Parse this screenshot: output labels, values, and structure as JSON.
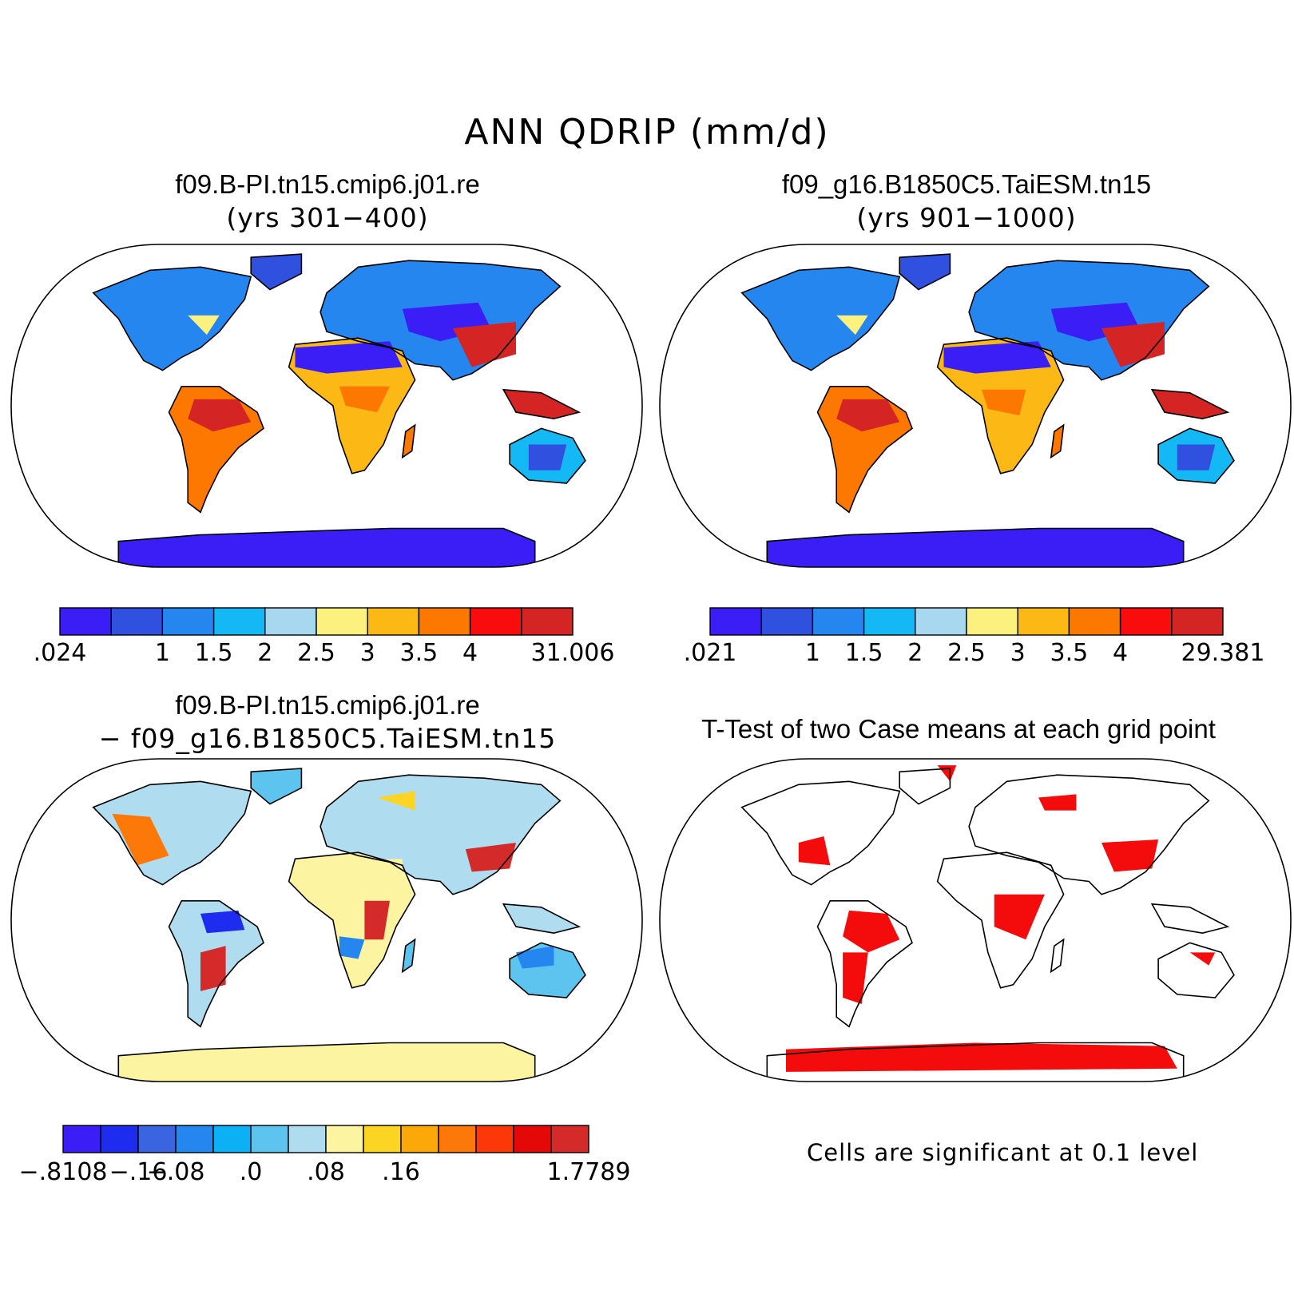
{
  "figure": {
    "title": "ANN QDRIP (mm/d)"
  },
  "panels": {
    "p1": {
      "title": "f09.B-PI.tn15.cmip6.j01.re",
      "subtitle": "(yrs 301−400)"
    },
    "p2": {
      "title": "f09_g16.B1850C5.TaiESM.tn15",
      "subtitle": "(yrs 901−1000)"
    },
    "p3": {
      "title": "f09.B-PI.tn15.cmip6.j01.re",
      "subtitle": "− f09_g16.B1850C5.TaiESM.tn15"
    },
    "p4": {
      "title": "T-Test of two Case means at each grid point",
      "note": "Cells are significant at 0.1 level"
    }
  },
  "colorbars": {
    "cb1": {
      "colors": [
        "#3a1ef5",
        "#3050e0",
        "#2686f0",
        "#14b8f5",
        "#a8d8f0",
        "#fcf07e",
        "#fcb814",
        "#fc7800",
        "#f80c0c",
        "#d42424"
      ],
      "labels": [
        ".024",
        "",
        "1",
        "1.5",
        "2",
        "2.5",
        "3",
        "3.5",
        "4",
        "",
        "31.006"
      ]
    },
    "cb2": {
      "colors": [
        "#3a1ef5",
        "#3050e0",
        "#2686f0",
        "#14b8f5",
        "#a8d8f0",
        "#fcf07e",
        "#fcb814",
        "#fc7800",
        "#f80c0c",
        "#d42424"
      ],
      "labels": [
        ".021",
        "",
        "1",
        "1.5",
        "2",
        "2.5",
        "3",
        "3.5",
        "4",
        "",
        "29.381"
      ]
    },
    "cb3": {
      "colors": [
        "#3a1ef5",
        "#1e2cf0",
        "#3a64e0",
        "#2686f0",
        "#0cb0f5",
        "#5cc4ee",
        "#b0dcf0",
        "#fcf4a0",
        "#fcd424",
        "#fca808",
        "#fc7808",
        "#fc3808",
        "#e40808",
        "#d42a2a"
      ],
      "labels": [
        "−.8108",
        "",
        "−.16",
        "−.08",
        "",
        ".0",
        "",
        ".08",
        "",
        ".16",
        "",
        "",
        "",
        "",
        "1.7789"
      ]
    }
  }
}
